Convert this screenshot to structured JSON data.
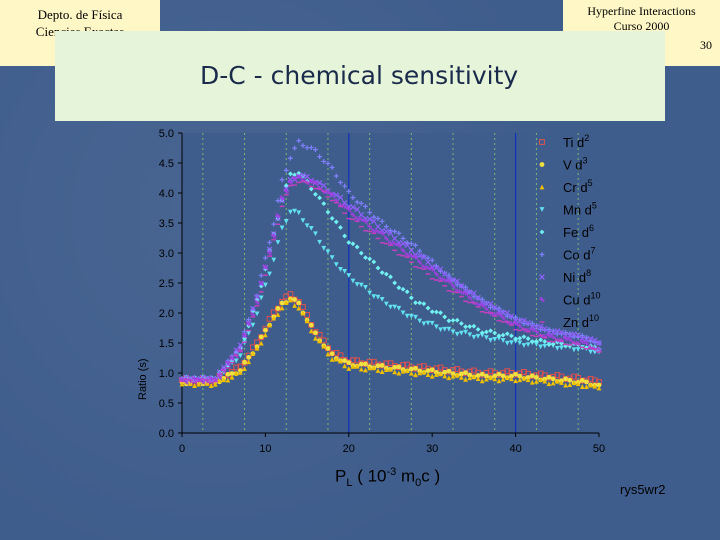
{
  "header": {
    "left_line1": "Depto. de Física",
    "left_line2": "Ciencias Exactas",
    "right_line1": "Hyperfine Interactions",
    "right_line2": "Curso 2000",
    "slide_number": "30"
  },
  "slide_title": "D-C -  chemical sensitivity",
  "footer_tag": "rys5wr2",
  "colors": {
    "background": "#3f5d8c",
    "header_box": "#fff8c6",
    "title_box": "#e6f5d9"
  },
  "chart_data": {
    "type": "scatter",
    "xlabel": "PL ( 10-3 m0c )",
    "ylabel": "Ratio (s)",
    "xlim": [
      0,
      50
    ],
    "ylim": [
      0,
      5
    ],
    "xticks": [
      "0",
      "10",
      "20",
      "30",
      "40",
      "50"
    ],
    "yticks": [
      "0.0",
      "0.5",
      "1.0",
      "1.5",
      "2.0",
      "2.5",
      "3.0",
      "3.5",
      "4.0",
      "4.5",
      "5.0"
    ],
    "grid": "dashed verticals",
    "legend_position": "top-right",
    "reference_lines_x": [
      20,
      40
    ],
    "series": [
      {
        "name": "Ti d2",
        "color": "#e05050",
        "marker": "square",
        "x": [
          0,
          4,
          7,
          9,
          11,
          12,
          13,
          14,
          16,
          18,
          20,
          24,
          28,
          32,
          36,
          40,
          44,
          48,
          50
        ],
        "y": [
          0.88,
          0.88,
          1.1,
          1.5,
          2.0,
          2.2,
          2.3,
          2.2,
          1.7,
          1.35,
          1.2,
          1.15,
          1.1,
          1.05,
          1.0,
          1.0,
          0.95,
          0.9,
          0.85
        ]
      },
      {
        "name": "V d3",
        "color": "#f0e040",
        "marker": "circle",
        "x": [
          0,
          4,
          7,
          9,
          11,
          12,
          13,
          14,
          16,
          18,
          20,
          24,
          28,
          32,
          36,
          40,
          44,
          48,
          50
        ],
        "y": [
          0.85,
          0.85,
          1.05,
          1.45,
          1.95,
          2.15,
          2.25,
          2.15,
          1.65,
          1.3,
          1.15,
          1.1,
          1.05,
          1.0,
          0.95,
          0.95,
          0.9,
          0.85,
          0.8
        ]
      },
      {
        "name": "Cr d5",
        "color": "#f0c000",
        "marker": "triangle",
        "x": [
          0,
          4,
          7,
          9,
          11,
          12,
          13,
          14,
          16,
          18,
          20,
          24,
          28,
          32,
          36,
          40,
          44,
          48,
          50
        ],
        "y": [
          0.82,
          0.82,
          1.0,
          1.4,
          1.9,
          2.1,
          2.2,
          2.1,
          1.6,
          1.25,
          1.1,
          1.05,
          1.0,
          0.95,
          0.9,
          0.9,
          0.85,
          0.8,
          0.75
        ]
      },
      {
        "name": "Mn d5",
        "color": "#60e0f0",
        "marker": "triangle-down",
        "x": [
          0,
          4,
          7,
          9,
          11,
          12,
          13,
          14,
          16,
          18,
          20,
          24,
          28,
          32,
          36,
          40,
          44,
          48,
          50
        ],
        "y": [
          0.88,
          0.88,
          1.3,
          2.0,
          2.9,
          3.4,
          3.7,
          3.65,
          3.3,
          2.9,
          2.6,
          2.2,
          1.9,
          1.7,
          1.6,
          1.5,
          1.45,
          1.4,
          1.35
        ]
      },
      {
        "name": "Fe d6",
        "color": "#70f0f0",
        "marker": "diamond",
        "x": [
          0,
          4,
          7,
          9,
          11,
          12,
          13,
          14,
          16,
          18,
          20,
          24,
          28,
          32,
          36,
          40,
          44,
          48,
          50
        ],
        "y": [
          0.9,
          0.9,
          1.4,
          2.2,
          3.3,
          3.9,
          4.3,
          4.35,
          4.0,
          3.6,
          3.2,
          2.7,
          2.2,
          1.9,
          1.7,
          1.6,
          1.5,
          1.45,
          1.4
        ]
      },
      {
        "name": "Co d7",
        "color": "#8080ff",
        "marker": "plus",
        "x": [
          0,
          4,
          7,
          9,
          11,
          12,
          13,
          14,
          16,
          18,
          20,
          24,
          28,
          32,
          36,
          40,
          44,
          48,
          50
        ],
        "y": [
          0.9,
          0.9,
          1.45,
          2.3,
          3.5,
          4.2,
          4.6,
          4.85,
          4.7,
          4.4,
          4.0,
          3.5,
          3.1,
          2.6,
          2.2,
          1.9,
          1.7,
          1.6,
          1.5
        ]
      },
      {
        "name": "Ni d8",
        "color": "#9060ff",
        "marker": "x",
        "x": [
          0,
          4,
          7,
          9,
          11,
          12,
          13,
          14,
          16,
          18,
          20,
          24,
          28,
          32,
          36,
          40,
          44,
          48,
          50
        ],
        "y": [
          0.9,
          0.9,
          1.45,
          2.25,
          3.3,
          3.9,
          4.2,
          4.3,
          4.2,
          4.0,
          3.8,
          3.4,
          3.0,
          2.6,
          2.2,
          1.9,
          1.7,
          1.6,
          1.5
        ]
      },
      {
        "name": "Cu d10",
        "color": "#a040e0",
        "marker": "star",
        "x": [
          0,
          4,
          7,
          9,
          11,
          12,
          13,
          14,
          16,
          18,
          20,
          24,
          28,
          32,
          36,
          40,
          44,
          48,
          50
        ],
        "y": [
          0.88,
          0.88,
          1.4,
          2.2,
          3.3,
          3.9,
          4.2,
          4.25,
          4.15,
          3.95,
          3.7,
          3.3,
          2.9,
          2.5,
          2.1,
          1.8,
          1.6,
          1.5,
          1.4
        ]
      },
      {
        "name": "Zn d10",
        "color": "#c040c0",
        "marker": "dash",
        "x": [
          0,
          4,
          7,
          9,
          11,
          12,
          13,
          14,
          16,
          18,
          20,
          24,
          28,
          32,
          36,
          40,
          44,
          48,
          50
        ],
        "y": [
          0.87,
          0.87,
          1.35,
          2.1,
          3.2,
          3.8,
          4.1,
          4.2,
          4.1,
          3.9,
          3.6,
          3.2,
          2.8,
          2.4,
          2.05,
          1.75,
          1.55,
          1.45,
          1.35
        ]
      }
    ]
  }
}
